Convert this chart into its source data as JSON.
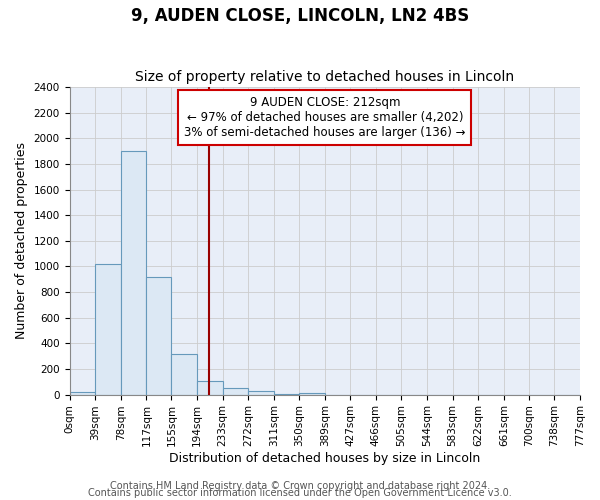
{
  "title": "9, AUDEN CLOSE, LINCOLN, LN2 4BS",
  "subtitle": "Size of property relative to detached houses in Lincoln",
  "xlabel": "Distribution of detached houses by size in Lincoln",
  "ylabel": "Number of detached properties",
  "bar_edges": [
    0,
    39,
    78,
    117,
    155,
    194,
    233,
    272,
    311,
    350,
    389,
    427,
    466,
    505,
    544,
    583,
    622,
    661,
    700,
    738,
    777
  ],
  "bar_heights": [
    20,
    1020,
    1900,
    920,
    320,
    110,
    50,
    30,
    5,
    15,
    0,
    0,
    0,
    0,
    0,
    0,
    0,
    0,
    0,
    0
  ],
  "tick_labels": [
    "0sqm",
    "39sqm",
    "78sqm",
    "117sqm",
    "155sqm",
    "194sqm",
    "233sqm",
    "272sqm",
    "311sqm",
    "350sqm",
    "389sqm",
    "427sqm",
    "466sqm",
    "505sqm",
    "544sqm",
    "583sqm",
    "622sqm",
    "661sqm",
    "700sqm",
    "738sqm",
    "777sqm"
  ],
  "bar_color": "#dce8f4",
  "bar_edge_color": "#6699bb",
  "vline_x": 212,
  "vline_color": "#990000",
  "annotation_line1": "9 AUDEN CLOSE: 212sqm",
  "annotation_line2": "← 97% of detached houses are smaller (4,202)",
  "annotation_line3": "3% of semi-detached houses are larger (136) →",
  "annotation_box_color": "#ffffff",
  "annotation_box_edge": "#cc0000",
  "ylim": [
    0,
    2400
  ],
  "yticks": [
    0,
    200,
    400,
    600,
    800,
    1000,
    1200,
    1400,
    1600,
    1800,
    2000,
    2200,
    2400
  ],
  "footer1": "Contains HM Land Registry data © Crown copyright and database right 2024.",
  "footer2": "Contains public sector information licensed under the Open Government Licence v3.0.",
  "bg_color": "#ffffff",
  "plot_bg_color": "#e8eef8",
  "title_fontsize": 12,
  "subtitle_fontsize": 10,
  "axis_label_fontsize": 9,
  "tick_fontsize": 7.5,
  "footer_fontsize": 7
}
